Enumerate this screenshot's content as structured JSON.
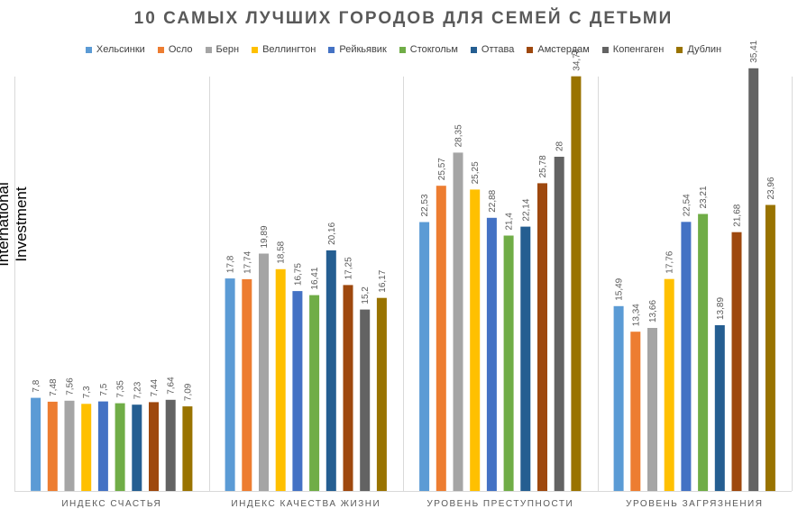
{
  "chart_data": {
    "type": "bar",
    "title": "10 САМЫХ ЛУЧШИХ ГОРОДОВ ДЛЯ СЕМЕЙ С ДЕТЬМИ",
    "ylabel": "International Investment",
    "xlabel": "",
    "ylim": [
      0,
      40
    ],
    "grid": false,
    "legend_position": "top",
    "categories": [
      "ИНДЕКС СЧАСТЬЯ",
      "ИНДЕКС КАЧЕСТВА ЖИЗНИ",
      "УРОВЕНЬ ПРЕСТУПНОСТИ",
      "УРОВЕНЬ ЗАГРЯЗНЕНИЯ"
    ],
    "series": [
      {
        "name": "Хельсинки",
        "color": "#5B9BD5",
        "values": [
          7.8,
          17.8,
          22.53,
          15.49
        ],
        "labels": [
          "7,8",
          "17,8",
          "22,53",
          "15,49"
        ]
      },
      {
        "name": "Осло",
        "color": "#ED7D31",
        "values": [
          7.48,
          17.74,
          25.57,
          13.34
        ],
        "labels": [
          "7,48",
          "17,74",
          "25,57",
          "13,34"
        ]
      },
      {
        "name": "Берн",
        "color": "#A5A5A5",
        "values": [
          7.56,
          19.89,
          28.35,
          13.66
        ],
        "labels": [
          "7,56",
          "19,89",
          "28,35",
          "13,66"
        ]
      },
      {
        "name": "Веллингтон",
        "color": "#FFC000",
        "values": [
          7.3,
          18.58,
          25.25,
          17.76
        ],
        "labels": [
          "7,3",
          "18,58",
          "25,25",
          "17,76"
        ]
      },
      {
        "name": "Рейкьявик",
        "color": "#4472C4",
        "values": [
          7.5,
          16.75,
          22.88,
          22.54
        ],
        "labels": [
          "7,5",
          "16,75",
          "22,88",
          "22,54"
        ]
      },
      {
        "name": "Стокгольм",
        "color": "#70AD47",
        "values": [
          7.35,
          16.41,
          21.4,
          23.21
        ],
        "labels": [
          "7,35",
          "16,41",
          "21,4",
          "23,21"
        ]
      },
      {
        "name": "Оттава",
        "color": "#255E91",
        "values": [
          7.23,
          20.16,
          22.14,
          13.89
        ],
        "labels": [
          "7,23",
          "20,16",
          "22,14",
          "13,89"
        ]
      },
      {
        "name": "Амстердам",
        "color": "#9E480E",
        "values": [
          7.44,
          17.25,
          25.78,
          21.68
        ],
        "labels": [
          "7,44",
          "17,25",
          "25,78",
          "21,68"
        ]
      },
      {
        "name": "Копенгаген",
        "color": "#636363",
        "values": [
          7.64,
          15.2,
          28,
          35.41
        ],
        "labels": [
          "7,64",
          "15,2",
          "28",
          "35,41"
        ]
      },
      {
        "name": "Дублин",
        "color": "#997300",
        "values": [
          7.09,
          16.17,
          34.74,
          23.96
        ],
        "labels": [
          "7,09",
          "16,17",
          "34,74",
          "23,96"
        ]
      }
    ]
  }
}
